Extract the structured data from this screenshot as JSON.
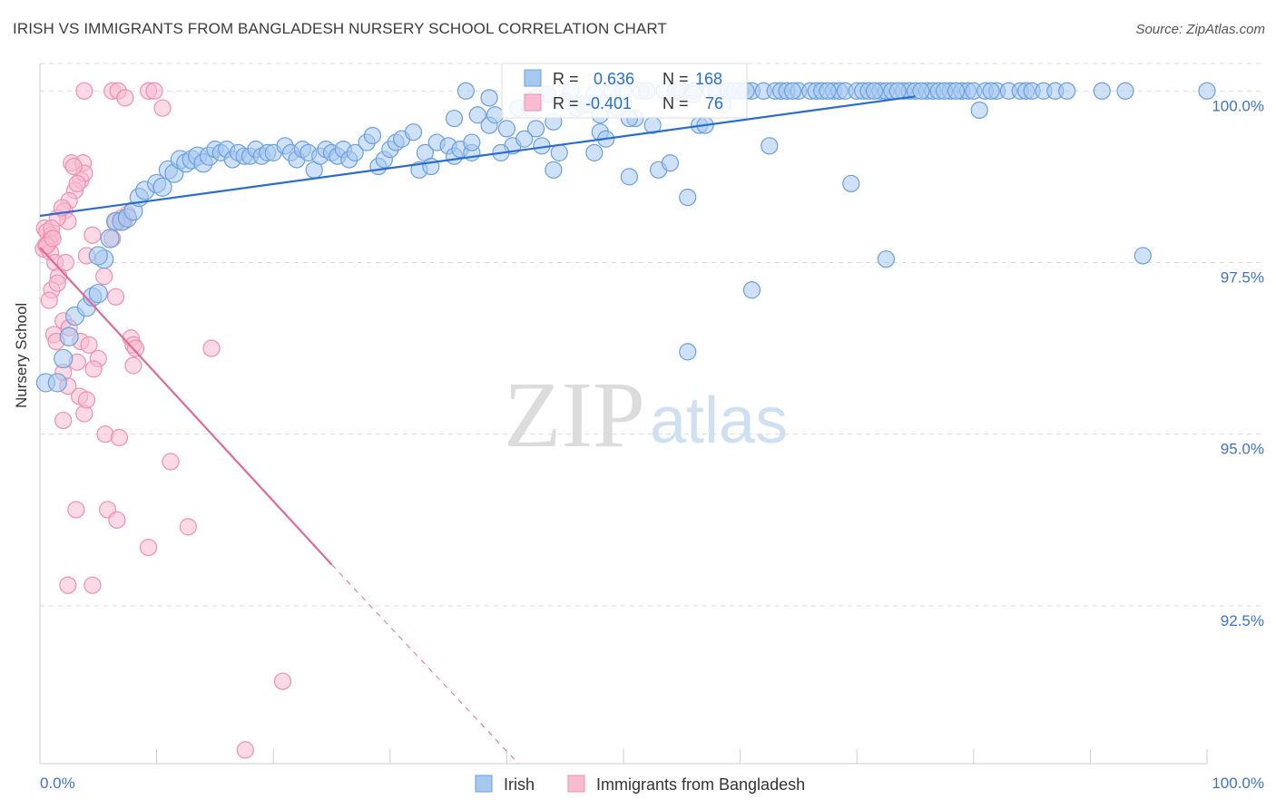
{
  "title": "IRISH VS IMMIGRANTS FROM BANGLADESH NURSERY SCHOOL CORRELATION CHART",
  "source": "Source: ZipAtlas.com",
  "watermark": {
    "zip": "ZIP",
    "atlas": "atlas"
  },
  "colors": {
    "irish_fill": "#a7c8f0",
    "irish_stroke": "#6a9fdc",
    "irish_line": "#2a6dd0",
    "bang_fill": "#f7bcd0",
    "bang_stroke": "#ee8fae",
    "bang_line": "#e06a94",
    "axis_text": "#3f73c8",
    "grid": "#d9d9d9"
  },
  "legend_box": {
    "irish": {
      "r_label": "R =",
      "r_value": "0.636",
      "n_label": "N =",
      "n_value": "168"
    },
    "bang": {
      "r_label": "R =",
      "r_value": "-0.401",
      "n_label": "N =",
      "n_value": "76"
    }
  },
  "chart_data": {
    "type": "scatter",
    "title": "IRISH VS IMMIGRANTS FROM BANGLADESH NURSERY SCHOOL CORRELATION CHART",
    "xlabel": "",
    "ylabel": "Nursery School",
    "xlim": [
      0,
      100
    ],
    "ylim": [
      90.2,
      100.4
    ],
    "x_tick_labels": [
      "0.0%",
      "100.0%"
    ],
    "y_ticks": [
      92.5,
      95.0,
      97.5,
      100.0
    ],
    "y_tick_labels": [
      "92.5%",
      "95.0%",
      "97.5%",
      "100.0%"
    ],
    "grid": true,
    "legend_placement": "bottom",
    "series": [
      {
        "name": "Irish",
        "r": 0.636,
        "n": 168,
        "trend": {
          "x0": 0.0,
          "y0": 98.18,
          "x1": 75.0,
          "y1": 99.92
        },
        "points": [
          [
            0.5,
            95.75
          ],
          [
            1.5,
            95.75
          ],
          [
            2.0,
            96.1
          ],
          [
            2.5,
            96.42
          ],
          [
            3.0,
            96.72
          ],
          [
            4.0,
            96.85
          ],
          [
            4.5,
            97.0
          ],
          [
            5.0,
            97.05
          ],
          [
            5.5,
            97.55
          ],
          [
            5.0,
            97.6
          ],
          [
            6.0,
            97.85
          ],
          [
            6.5,
            98.1
          ],
          [
            7.0,
            98.1
          ],
          [
            7.5,
            98.15
          ],
          [
            8.0,
            98.25
          ],
          [
            8.5,
            98.45
          ],
          [
            9.0,
            98.55
          ],
          [
            10.0,
            98.65
          ],
          [
            10.5,
            98.6
          ],
          [
            11.0,
            98.85
          ],
          [
            11.5,
            98.8
          ],
          [
            12.0,
            99.0
          ],
          [
            12.5,
            98.95
          ],
          [
            13.0,
            99.0
          ],
          [
            13.5,
            99.05
          ],
          [
            14.0,
            98.95
          ],
          [
            14.5,
            99.05
          ],
          [
            15.0,
            99.15
          ],
          [
            15.5,
            99.1
          ],
          [
            16.0,
            99.15
          ],
          [
            16.5,
            99.0
          ],
          [
            17.0,
            99.1
          ],
          [
            17.5,
            99.05
          ],
          [
            18.0,
            99.05
          ],
          [
            18.5,
            99.15
          ],
          [
            19.0,
            99.05
          ],
          [
            19.5,
            99.1
          ],
          [
            20.0,
            99.1
          ],
          [
            21.0,
            99.2
          ],
          [
            21.5,
            99.1
          ],
          [
            22.0,
            99.0
          ],
          [
            22.5,
            99.15
          ],
          [
            23.0,
            99.1
          ],
          [
            23.5,
            98.85
          ],
          [
            24.0,
            99.05
          ],
          [
            24.5,
            99.15
          ],
          [
            25.0,
            99.1
          ],
          [
            25.5,
            99.05
          ],
          [
            26.0,
            99.15
          ],
          [
            26.5,
            99.0
          ],
          [
            27.0,
            99.1
          ],
          [
            28.0,
            99.25
          ],
          [
            28.5,
            99.35
          ],
          [
            29.0,
            98.9
          ],
          [
            29.5,
            99.0
          ],
          [
            30.0,
            99.15
          ],
          [
            30.5,
            99.25
          ],
          [
            31.0,
            99.3
          ],
          [
            32.0,
            99.4
          ],
          [
            32.5,
            98.85
          ],
          [
            33.0,
            99.1
          ],
          [
            33.5,
            98.9
          ],
          [
            34.0,
            99.25
          ],
          [
            35.0,
            99.2
          ],
          [
            35.5,
            99.05
          ],
          [
            36.0,
            99.15
          ],
          [
            37.0,
            99.1
          ],
          [
            37.5,
            99.65
          ],
          [
            38.5,
            99.5
          ],
          [
            39.0,
            99.65
          ],
          [
            40.0,
            99.45
          ],
          [
            40.5,
            99.2
          ],
          [
            41.0,
            99.75
          ],
          [
            42.0,
            99.75
          ],
          [
            42.5,
            99.45
          ],
          [
            43.0,
            99.2
          ],
          [
            44.0,
            98.85
          ],
          [
            44.5,
            99.1
          ],
          [
            45.0,
            99.85
          ],
          [
            45.5,
            100.0
          ],
          [
            46.0,
            99.75
          ],
          [
            47.0,
            99.8
          ],
          [
            47.5,
            99.1
          ],
          [
            48.0,
            99.4
          ],
          [
            48.5,
            99.3
          ],
          [
            49.0,
            100.0
          ],
          [
            50.0,
            100.0
          ],
          [
            50.5,
            98.75
          ],
          [
            51.0,
            99.6
          ],
          [
            51.5,
            100.0
          ],
          [
            52.0,
            100.0
          ],
          [
            53.0,
            98.85
          ],
          [
            53.5,
            100.0
          ],
          [
            54.0,
            98.95
          ],
          [
            55.0,
            100.0
          ],
          [
            55.5,
            98.45
          ],
          [
            56.0,
            100.0
          ],
          [
            56.5,
            99.5
          ],
          [
            57.5,
            100.0
          ],
          [
            58.0,
            100.0
          ],
          [
            59.0,
            100.0
          ],
          [
            60.0,
            100.0
          ],
          [
            61.0,
            100.0
          ],
          [
            62.0,
            100.0
          ],
          [
            62.5,
            99.2
          ],
          [
            63.0,
            100.0
          ],
          [
            63.5,
            100.0
          ],
          [
            64.0,
            100.0
          ],
          [
            65.0,
            100.0
          ],
          [
            66.0,
            100.0
          ],
          [
            66.5,
            100.0
          ],
          [
            67.0,
            100.0
          ],
          [
            68.0,
            100.0
          ],
          [
            68.5,
            100.0
          ],
          [
            69.0,
            100.0
          ],
          [
            70.0,
            100.0
          ],
          [
            70.5,
            100.0
          ],
          [
            71.0,
            100.0
          ],
          [
            72.0,
            100.0
          ],
          [
            72.5,
            100.0
          ],
          [
            73.0,
            100.0
          ],
          [
            74.0,
            100.0
          ],
          [
            74.5,
            100.0
          ],
          [
            75.0,
            100.0
          ],
          [
            76.0,
            100.0
          ],
          [
            76.5,
            100.0
          ],
          [
            77.0,
            100.0
          ],
          [
            78.0,
            100.0
          ],
          [
            79.0,
            100.0
          ],
          [
            79.5,
            100.0
          ],
          [
            80.0,
            100.0
          ],
          [
            80.5,
            99.72
          ],
          [
            81.0,
            100.0
          ],
          [
            82.0,
            100.0
          ],
          [
            83.0,
            100.0
          ],
          [
            84.0,
            100.0
          ],
          [
            84.5,
            100.0
          ],
          [
            85.0,
            100.0
          ],
          [
            86.0,
            100.0
          ],
          [
            87.0,
            100.0
          ],
          [
            88.0,
            100.0
          ],
          [
            91.0,
            100.0
          ],
          [
            93.0,
            100.0
          ],
          [
            94.5,
            97.6
          ],
          [
            100.0,
            100.0
          ],
          [
            69.5,
            98.65
          ],
          [
            72.5,
            97.55
          ],
          [
            61.0,
            97.1
          ],
          [
            55.5,
            96.2
          ],
          [
            48.0,
            99.65
          ],
          [
            46.5,
            99.8
          ],
          [
            44.0,
            99.55
          ],
          [
            43.5,
            99.95
          ],
          [
            42.5,
            99.9
          ],
          [
            41.5,
            99.3
          ],
          [
            39.5,
            99.1
          ],
          [
            38.5,
            99.9
          ],
          [
            37.0,
            99.25
          ],
          [
            36.5,
            100.0
          ],
          [
            35.5,
            99.6
          ],
          [
            47.5,
            99.95
          ],
          [
            49.5,
            99.75
          ],
          [
            50.5,
            99.6
          ],
          [
            52.5,
            99.5
          ],
          [
            54.5,
            100.0
          ],
          [
            56.0,
            99.95
          ],
          [
            57.0,
            99.5
          ],
          [
            58.5,
            99.8
          ],
          [
            59.5,
            100.0
          ],
          [
            60.5,
            100.0
          ],
          [
            64.5,
            100.0
          ],
          [
            67.5,
            100.0
          ],
          [
            71.5,
            100.0
          ],
          [
            73.5,
            100.0
          ],
          [
            75.5,
            100.0
          ],
          [
            77.5,
            100.0
          ],
          [
            78.5,
            100.0
          ],
          [
            81.5,
            100.0
          ]
        ]
      },
      {
        "name": "Immigrants from Bangladesh",
        "r": -0.401,
        "n": 76,
        "trend": {
          "x0": 0.0,
          "y0": 97.72,
          "x1": 25.0,
          "y1": 93.1
        },
        "trend_dashed": {
          "x0": 25.0,
          "y0": 93.1,
          "x1": 41.0,
          "y1": 90.2
        },
        "points": [
          [
            3.8,
            100.0
          ],
          [
            6.2,
            100.0
          ],
          [
            6.7,
            100.0
          ],
          [
            7.3,
            99.9
          ],
          [
            9.3,
            100.0
          ],
          [
            9.8,
            100.0
          ],
          [
            10.5,
            99.75
          ],
          [
            2.7,
            98.95
          ],
          [
            3.7,
            98.95
          ],
          [
            3.5,
            98.7
          ],
          [
            3.0,
            98.55
          ],
          [
            3.8,
            98.8
          ],
          [
            3.2,
            98.65
          ],
          [
            2.5,
            98.4
          ],
          [
            2.1,
            98.25
          ],
          [
            2.4,
            98.1
          ],
          [
            1.5,
            98.15
          ],
          [
            0.4,
            98.0
          ],
          [
            0.6,
            97.95
          ],
          [
            1.0,
            97.9
          ],
          [
            0.8,
            97.8
          ],
          [
            0.5,
            97.75
          ],
          [
            0.3,
            97.7
          ],
          [
            0.9,
            97.65
          ],
          [
            1.3,
            97.5
          ],
          [
            1.6,
            97.3
          ],
          [
            2.2,
            97.5
          ],
          [
            4.0,
            97.6
          ],
          [
            4.5,
            97.9
          ],
          [
            6.2,
            97.85
          ],
          [
            5.5,
            97.3
          ],
          [
            6.5,
            98.1
          ],
          [
            1.0,
            97.1
          ],
          [
            1.5,
            97.2
          ],
          [
            0.8,
            96.95
          ],
          [
            2.0,
            96.65
          ],
          [
            2.5,
            96.55
          ],
          [
            1.2,
            96.45
          ],
          [
            1.4,
            96.35
          ],
          [
            3.5,
            96.35
          ],
          [
            4.2,
            96.3
          ],
          [
            5.0,
            96.1
          ],
          [
            6.5,
            97.0
          ],
          [
            7.2,
            98.1
          ],
          [
            7.5,
            98.2
          ],
          [
            2.0,
            95.9
          ],
          [
            3.2,
            96.05
          ],
          [
            4.6,
            95.95
          ],
          [
            8.0,
            96.0
          ],
          [
            7.8,
            96.4
          ],
          [
            8.0,
            96.3
          ],
          [
            8.2,
            96.25
          ],
          [
            2.4,
            95.7
          ],
          [
            3.4,
            95.55
          ],
          [
            3.8,
            95.3
          ],
          [
            4.0,
            95.5
          ],
          [
            2.0,
            95.2
          ],
          [
            5.6,
            95.0
          ],
          [
            6.8,
            94.95
          ],
          [
            11.2,
            94.6
          ],
          [
            3.1,
            93.9
          ],
          [
            5.8,
            93.9
          ],
          [
            6.6,
            93.75
          ],
          [
            9.3,
            93.35
          ],
          [
            12.7,
            93.65
          ],
          [
            14.7,
            96.25
          ],
          [
            2.4,
            92.8
          ],
          [
            4.5,
            92.8
          ],
          [
            20.8,
            91.4
          ],
          [
            17.6,
            90.4
          ],
          [
            1.0,
            98.0
          ],
          [
            1.9,
            98.3
          ],
          [
            2.9,
            98.9
          ],
          [
            0.6,
            97.75
          ],
          [
            1.1,
            97.85
          ],
          [
            7.0,
            98.15
          ]
        ]
      }
    ]
  }
}
